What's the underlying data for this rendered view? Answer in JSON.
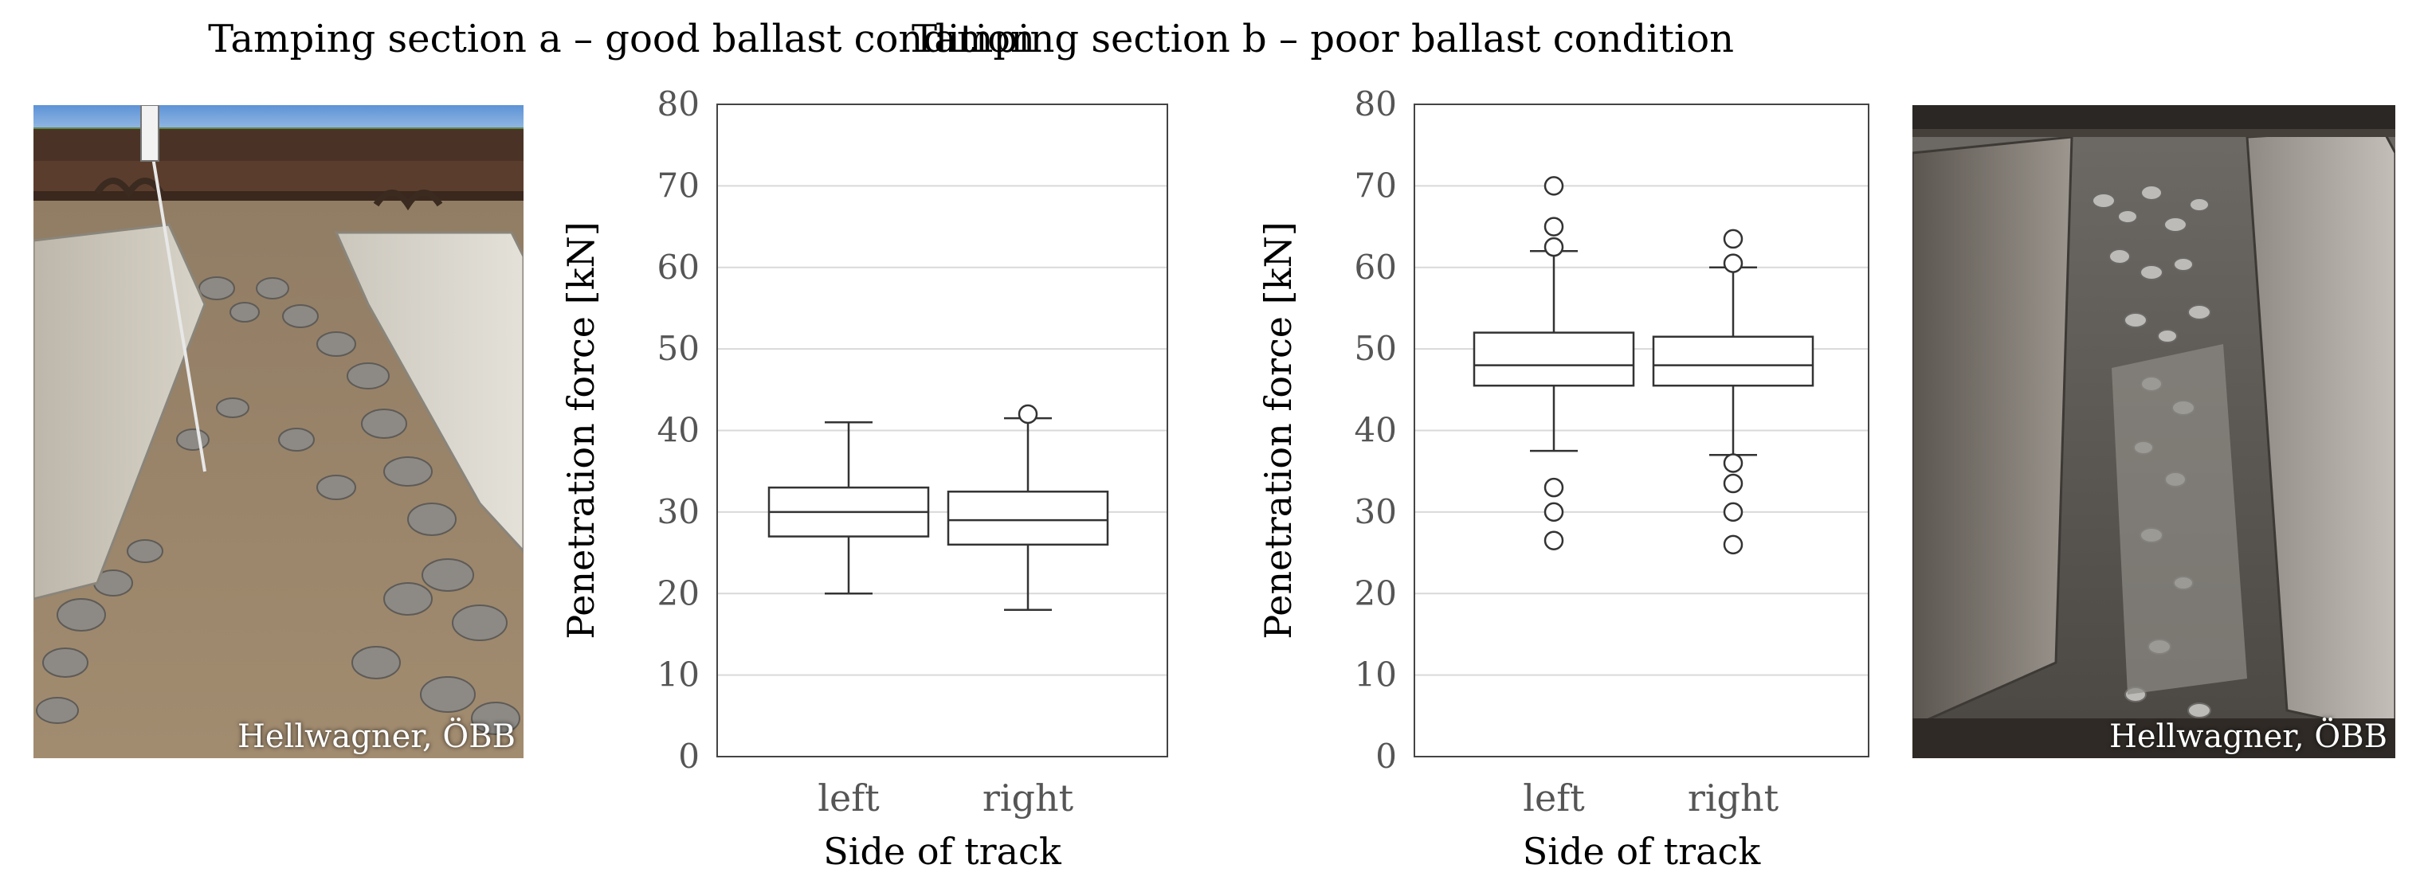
{
  "figure": {
    "photo_a_credit": "Hellwagner, ÖBB",
    "photo_b_credit": "Hellwagner, ÖBB"
  },
  "chart_data": [
    {
      "type": "box",
      "title": "Tamping section a – good ballast condition",
      "xlabel": "Side of track",
      "ylabel": "Penetration force [kN]",
      "ylim": [
        0,
        80
      ],
      "yticks": [
        0,
        10,
        20,
        30,
        40,
        50,
        60,
        70,
        80
      ],
      "grid": true,
      "categories": [
        "left",
        "right"
      ],
      "boxes": [
        {
          "category": "left",
          "whisker_low": 20,
          "q1": 27,
          "median": 30,
          "q3": 33,
          "whisker_high": 41,
          "outliers": []
        },
        {
          "category": "right",
          "whisker_low": 18,
          "q1": 26,
          "median": 29,
          "q3": 32.5,
          "whisker_high": 41.5,
          "outliers": [
            42
          ]
        }
      ]
    },
    {
      "type": "box",
      "title": "Tamping section b – poor ballast condition",
      "xlabel": "Side of track",
      "ylabel": "Penetration force [kN]",
      "ylim": [
        0,
        80
      ],
      "yticks": [
        0,
        10,
        20,
        30,
        40,
        50,
        60,
        70,
        80
      ],
      "grid": true,
      "categories": [
        "left",
        "right"
      ],
      "boxes": [
        {
          "category": "left",
          "whisker_low": 37.5,
          "q1": 45.5,
          "median": 48,
          "q3": 52,
          "whisker_high": 62,
          "outliers": [
            70,
            65,
            62.5,
            33,
            30,
            26.5
          ]
        },
        {
          "category": "right",
          "whisker_low": 37,
          "q1": 45.5,
          "median": 48,
          "q3": 51.5,
          "whisker_high": 60,
          "outliers": [
            63.5,
            60.5,
            36,
            33.5,
            30,
            26
          ]
        }
      ]
    }
  ]
}
